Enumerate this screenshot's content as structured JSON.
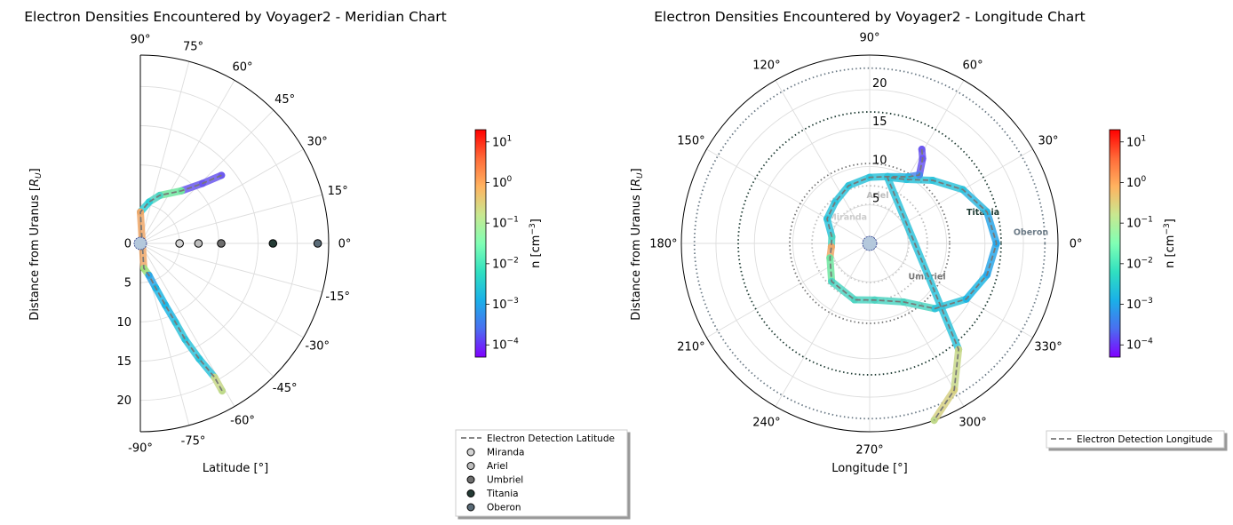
{
  "chart_data": [
    {
      "type": "scatter",
      "projection": "polar-half",
      "title": "Electron Densities Encountered by Voyager2 - Meridian Chart",
      "xlabel": "Latitude [°]",
      "ylabel": "Distance from Uranus [R_U]",
      "ylabel_text": "Distance from Uranus [",
      "ylabel_math": "R",
      "ylabel_sub": "U",
      "ylabel_tail": "]",
      "theta_ticks": [
        90,
        75,
        60,
        45,
        30,
        15,
        0,
        -15,
        -30,
        -45,
        -60,
        -75,
        -90
      ],
      "theta_tick_labels": [
        "90°",
        "75°",
        "60°",
        "45°",
        "30°",
        "15°",
        "0°",
        "-15°",
        "-30°",
        "-45°",
        "-60°",
        "-75°",
        "-90°"
      ],
      "r_range": [
        0,
        24
      ],
      "r_ticks": [
        0,
        5,
        10,
        15,
        20
      ],
      "r_tick_labels": [
        "0",
        "5",
        "10",
        "15",
        "20"
      ],
      "grid": true,
      "trajectory": [
        [
          40,
          13.5
        ],
        [
          44,
          11.0
        ],
        [
          52,
          8.5
        ],
        [
          68,
          6.6
        ],
        [
          78,
          5.4
        ],
        [
          90,
          4.0
        ],
        [
          -82,
          3.2
        ],
        [
          -75,
          4.2
        ],
        [
          -71,
          6.0
        ],
        [
          -68,
          8.5
        ],
        [
          -66,
          11.0
        ],
        [
          -65,
          13.5
        ],
        [
          -63,
          16.5
        ],
        [
          -61,
          19.5
        ],
        [
          -61,
          21.5
        ]
      ],
      "trajectory_colors": [
        "#6a57ee",
        "#6a57ee",
        "#6ee6a0",
        "#4fd5c2",
        "#2fcfd6",
        "#f0a86a",
        "#9ee07e",
        "#2aa6e8",
        "#1fb6e4",
        "#1fb6e4",
        "#2fc3da",
        "#2fc3da",
        "#2fc3da",
        "#c8d88a",
        "#bcd98a"
      ],
      "moons": [
        {
          "name": "Miranda",
          "r": 5.0,
          "lat": 0,
          "color": "#d3d3d3"
        },
        {
          "name": "Ariel",
          "r": 7.4,
          "lat": 0,
          "color": "#bdbdbd"
        },
        {
          "name": "Umbriel",
          "r": 10.3,
          "lat": 0,
          "color": "#6e6e6e"
        },
        {
          "name": "Titania",
          "r": 16.9,
          "lat": 0,
          "color": "#243b35"
        },
        {
          "name": "Oberon",
          "r": 22.6,
          "lat": 0,
          "color": "#5a6b77"
        }
      ],
      "legend": {
        "placement": "bottom-right",
        "entries": [
          "Electron Detection Latitude",
          "Miranda",
          "Ariel",
          "Umbriel",
          "Titania",
          "Oberon"
        ]
      }
    },
    {
      "type": "scatter",
      "projection": "polar",
      "title": "Electron Densities Encountered by Voyager2 - Longitude Chart",
      "xlabel": "Longitude [°]",
      "ylabel": "Distance from Uranus [R_U]",
      "ylabel_text": "Distance from Uranus [",
      "ylabel_math": "R",
      "ylabel_sub": "U",
      "ylabel_tail": "]",
      "theta_ticks": [
        0,
        30,
        60,
        90,
        120,
        150,
        180,
        210,
        240,
        270,
        300,
        330
      ],
      "theta_tick_labels": [
        "0°",
        "30°",
        "60°",
        "90°",
        "120°",
        "150°",
        "180°",
        "210°",
        "240°",
        "270°",
        "300°",
        "330°"
      ],
      "r_range": [
        0,
        24.5
      ],
      "r_ticks": [
        5,
        10,
        15,
        20
      ],
      "r_tick_labels": [
        "5",
        "10",
        "15",
        "20"
      ],
      "grid": true,
      "trajectory": [
        [
          61,
          14.0
        ],
        [
          58,
          13.0
        ],
        [
          54,
          11.0
        ],
        [
          60,
          10.0
        ],
        [
          75,
          9.0
        ],
        [
          90,
          8.6
        ],
        [
          110,
          8.0
        ],
        [
          130,
          7.0
        ],
        [
          150,
          6.4
        ],
        [
          170,
          5.0
        ],
        [
          185,
          5.0
        ],
        [
          200,
          5.5
        ],
        [
          225,
          7.0
        ],
        [
          255,
          7.6
        ],
        [
          275,
          7.4
        ],
        [
          300,
          8.8
        ],
        [
          315,
          12.0
        ],
        [
          330,
          14.5
        ],
        [
          345,
          15.8
        ],
        [
          0,
          16.5
        ],
        [
          15,
          15.8
        ],
        [
          30,
          14.0
        ],
        [
          45,
          11.6
        ],
        [
          60,
          9.6
        ],
        [
          75,
          8.9
        ],
        [
          -50,
          18.0
        ],
        [
          -60,
          22.0
        ],
        [
          -70,
          24.5
        ]
      ],
      "trajectory_colors": [
        "#6a57ee",
        "#6a57ee",
        "#4b86ec",
        "#2fb8e0",
        "#2fc3da",
        "#2fc3da",
        "#2fc3da",
        "#2fc3da",
        "#2fc3da",
        "#4fd5c2",
        "#f0a86a",
        "#6ee6a0",
        "#4fd5c2",
        "#4fd5c2",
        "#4fd5c2",
        "#4fd5c2",
        "#2fc3da",
        "#1fb6e4",
        "#2aa6e8",
        "#2aa6e8",
        "#2fb8e0",
        "#2fc3da",
        "#2fc3da",
        "#2fc3da",
        "#2fc3da",
        "#c8d88a",
        "#d6d082",
        "#bcd98a"
      ],
      "moon_orbits": [
        {
          "name": "Miranda",
          "r": 5.1,
          "color": "#cccccc",
          "label_angle": 133,
          "label_r": 4.2
        },
        {
          "name": "Ariel",
          "r": 7.5,
          "color": "#bbbbbb",
          "label_angle": 80,
          "label_r": 6.0
        },
        {
          "name": "Umbriel",
          "r": 10.4,
          "color": "#777777",
          "label_angle": -32,
          "label_r": 8.8
        },
        {
          "name": "Titania",
          "r": 17.1,
          "color": "#1e3b33",
          "label_angle": 14,
          "label_r": 15.2
        },
        {
          "name": "Oberon",
          "r": 22.8,
          "color": "#6b7a86",
          "label_angle": 3,
          "label_r": 21.0
        }
      ],
      "legend": {
        "placement": "bottom-right",
        "entries": [
          "Electron Detection Longitude"
        ]
      }
    }
  ],
  "colorbar": {
    "label_text": "n [cm",
    "label_sup": "−3",
    "label_tail": "]",
    "scale": "log",
    "range": [
      5e-05,
      20
    ],
    "ticks": [
      "10",
      "10",
      "10",
      "10",
      "10",
      "10"
    ],
    "tick_exponents": [
      "1",
      "0",
      "−1",
      "−2",
      "−3",
      "−4"
    ],
    "tick_values": [
      10,
      1,
      0.1,
      0.01,
      0.001,
      0.0001
    ],
    "colormap": "rainbow",
    "colormap_stops": [
      "#8000ff",
      "#4a6ff0",
      "#1ab0e8",
      "#30e0c0",
      "#80ffb4",
      "#c8e890",
      "#ffb360",
      "#ff6a38",
      "#ff0000"
    ]
  }
}
